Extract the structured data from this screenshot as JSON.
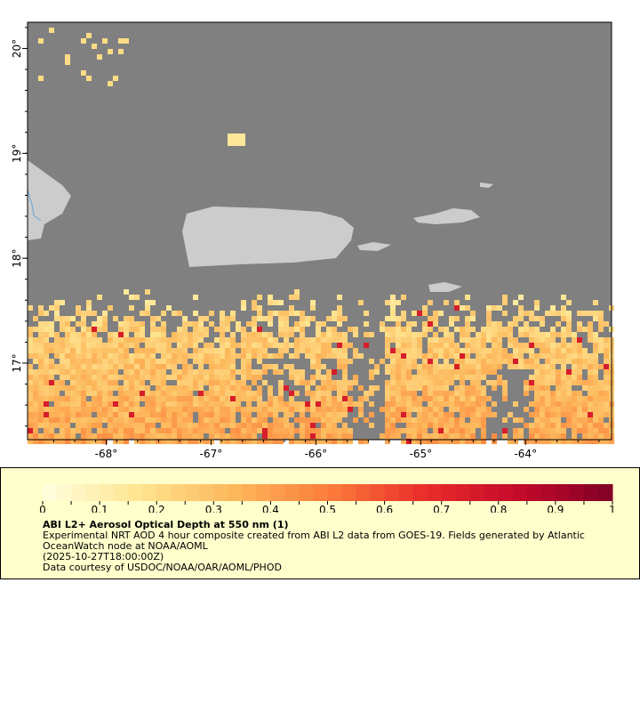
{
  "map": {
    "ocean_color": "#808080",
    "land_color": "#cccccc",
    "lon_range": [
      -68.75,
      -63.18
    ],
    "lat_range": [
      16.27,
      20.25
    ],
    "lon_ticks": [
      "-68°",
      "-67°",
      "-66°",
      "-65°",
      "-64°"
    ],
    "lat_ticks": [
      "20°",
      "19°",
      "18°",
      "17°"
    ]
  },
  "colorbar": {
    "range": [
      0,
      1
    ],
    "tick_labels": [
      "0",
      "0.1",
      "0.2",
      "0.3",
      "0.4",
      "0.5",
      "0.6",
      "0.7",
      "0.8",
      "0.9",
      "1"
    ],
    "colors": [
      "#ffffe0",
      "#fee591",
      "#fdb85c",
      "#fc7e3b",
      "#ea2e2a",
      "#c40a2b",
      "#800026"
    ]
  },
  "legend": {
    "title": "ABI L2+ Aerosol Optical Depth at 550 nm (1)",
    "line1": "Experimental NRT AOD 4 hour composite created from ABI L2 data from GOES-19. Fields generated by Atlantic",
    "line2": "OceanWatch node at NOAA/AOML",
    "line3": "(2025-10-27T18:00:00Z)",
    "line4": "Data courtesy of USDOC/NOAA/OAR/AOML/PHOD"
  }
}
